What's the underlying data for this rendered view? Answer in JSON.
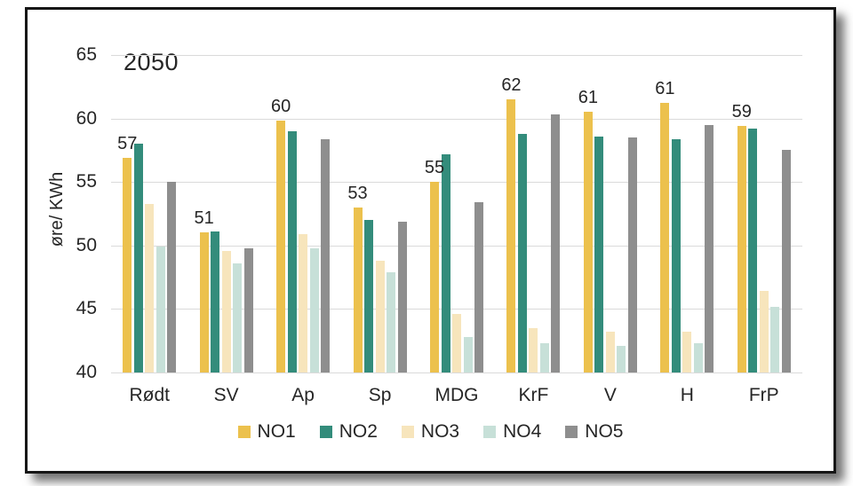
{
  "frame": {
    "background": "#ffffff",
    "card_border": "#161616",
    "gridline_color": "#dadada",
    "text_color": "#262626"
  },
  "chart_data": {
    "type": "bar",
    "title": "2050",
    "ylabel": "øre/ KWh",
    "ylim": [
      40,
      65
    ],
    "yticks": [
      40,
      45,
      50,
      55,
      60,
      65
    ],
    "grid": true,
    "legend_position": "bottom",
    "categories": [
      "Rødt",
      "SV",
      "Ap",
      "Sp",
      "MDG",
      "KrF",
      "V",
      "H",
      "FrP"
    ],
    "series": [
      {
        "name": "NO1",
        "color": "#ECC14D",
        "values": [
          56.9,
          51.0,
          59.8,
          53.0,
          55.0,
          61.5,
          60.5,
          61.2,
          59.4
        ]
      },
      {
        "name": "NO2",
        "color": "#338C7B",
        "values": [
          58.0,
          51.1,
          59.0,
          52.0,
          57.2,
          58.8,
          58.6,
          58.4,
          59.2
        ]
      },
      {
        "name": "NO3",
        "color": "#F7E5BC",
        "values": [
          53.3,
          49.6,
          50.9,
          48.8,
          44.6,
          43.5,
          43.2,
          43.2,
          46.4
        ]
      },
      {
        "name": "NO4",
        "color": "#C7E0D8",
        "values": [
          49.9,
          48.6,
          49.8,
          47.9,
          42.8,
          42.3,
          42.1,
          42.3,
          45.2
        ]
      },
      {
        "name": "NO5",
        "color": "#8E8E8E",
        "values": [
          55.0,
          49.8,
          58.4,
          51.9,
          53.4,
          60.3,
          58.5,
          59.5,
          57.5
        ]
      }
    ],
    "bar_labels": {
      "on_series": "NO1",
      "values": [
        "57",
        "51",
        "60",
        "53",
        "55",
        "62",
        "61",
        "61",
        "59"
      ]
    }
  }
}
